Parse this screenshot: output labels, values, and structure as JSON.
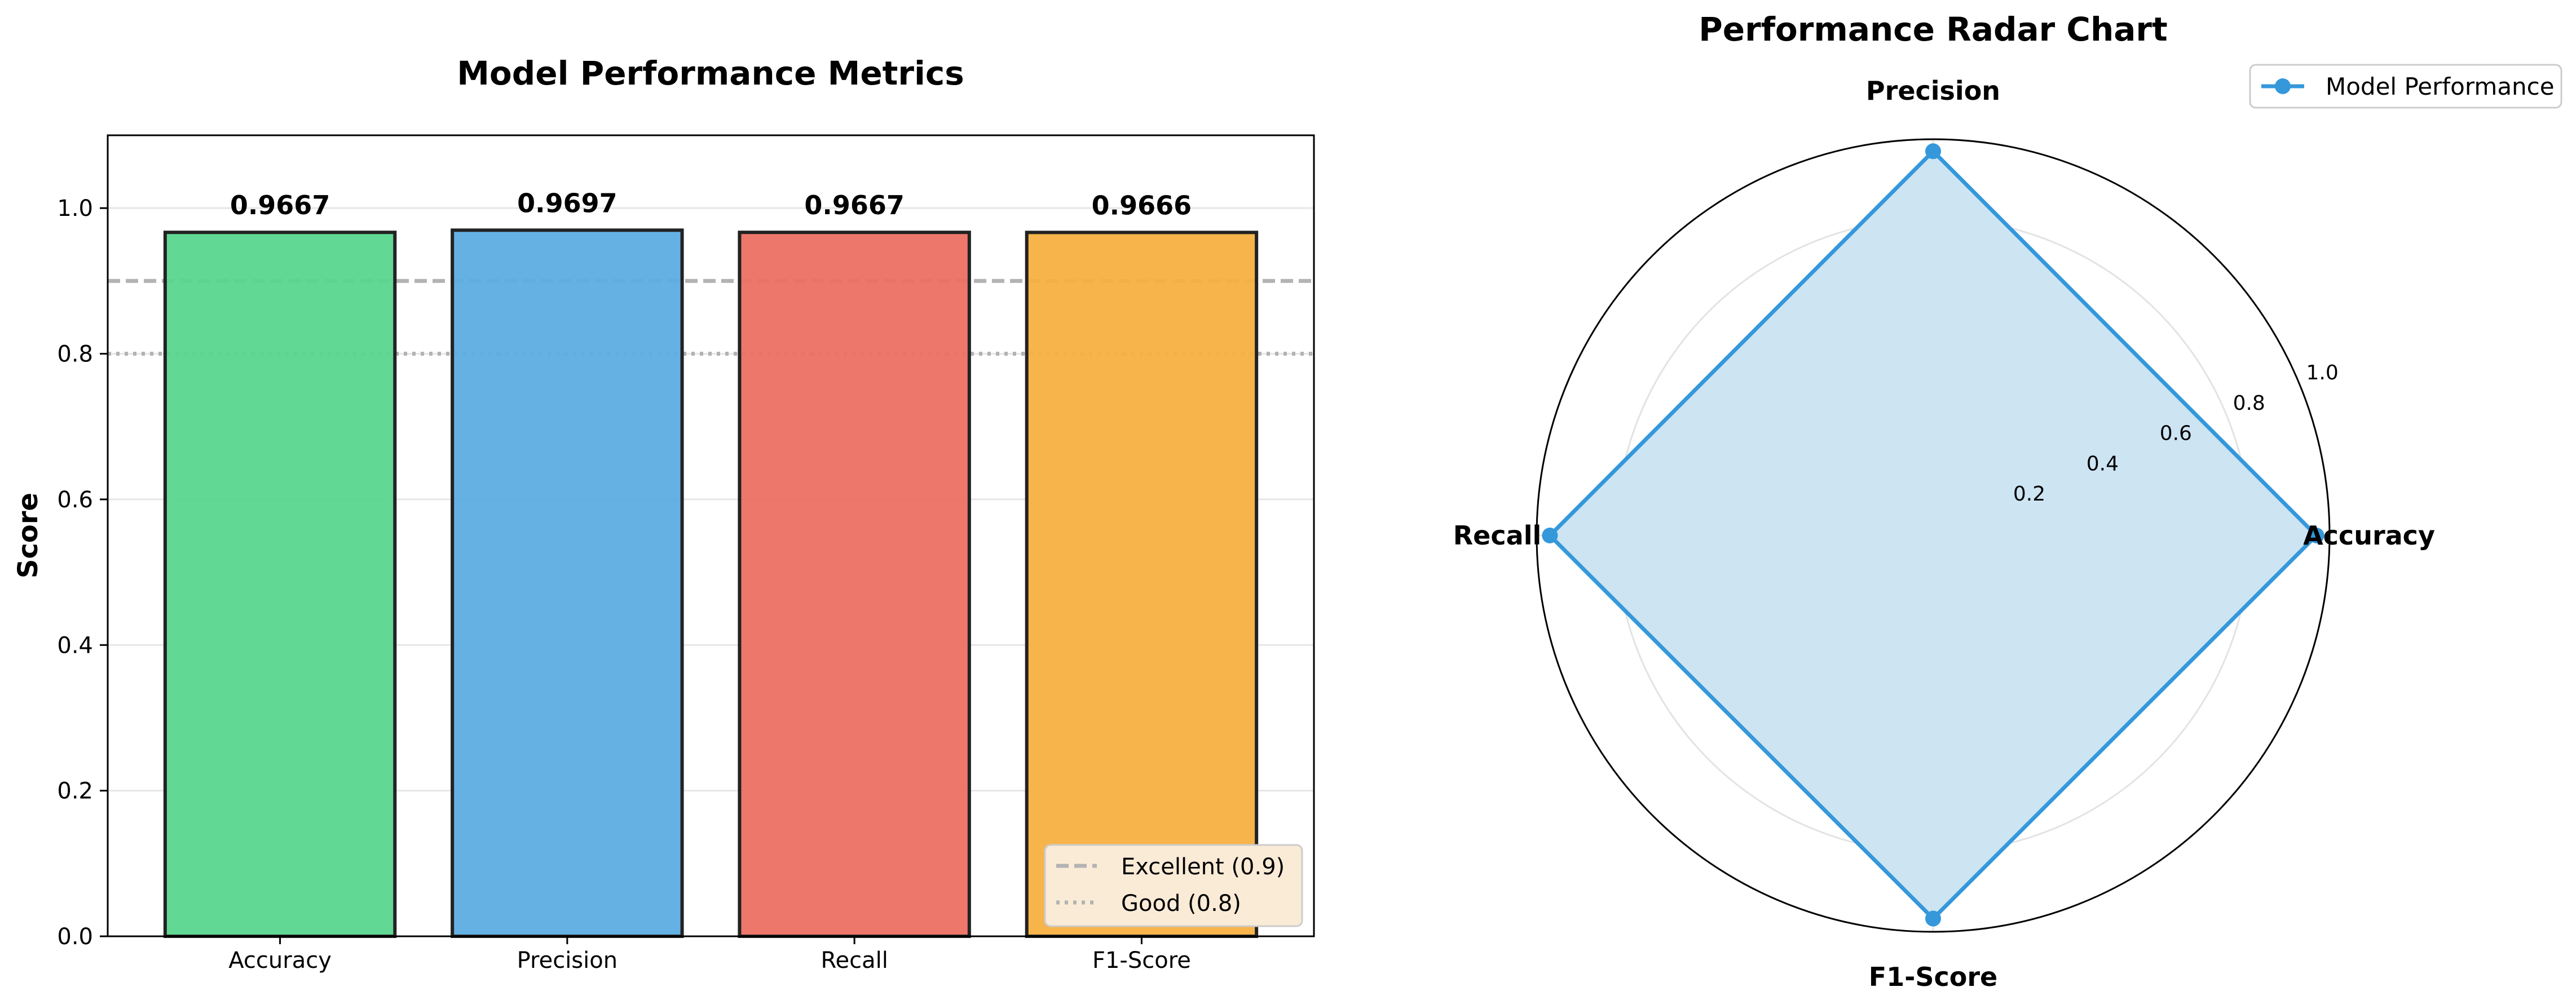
{
  "colors": {
    "accuracy": "#58d68d",
    "precision": "#5dade2",
    "recall": "#ec7063",
    "f1": "#f5b041",
    "radar_line": "#3498db",
    "radar_fill": "#cde4f3",
    "ref_excellent": "#b3b3b3",
    "ref_good": "#b3b3b3",
    "legend_bg": "#faebd7"
  },
  "chart_data": [
    {
      "type": "bar",
      "title": "Model Performance Metrics",
      "xlabel": "",
      "ylabel": "Score",
      "categories": [
        "Accuracy",
        "Precision",
        "Recall",
        "F1-Score"
      ],
      "values": [
        0.9667,
        0.9697,
        0.9667,
        0.9666
      ],
      "value_labels": [
        "0.9667",
        "0.9697",
        "0.9667",
        "0.9666"
      ],
      "ylim": [
        0,
        1.1
      ],
      "yticks": [
        0.0,
        0.2,
        0.4,
        0.6,
        0.8,
        1.0
      ],
      "ytick_labels": [
        "0.0",
        "0.2",
        "0.4",
        "0.6",
        "0.8",
        "1.0"
      ],
      "grid": true,
      "reference_lines": [
        {
          "label": "Excellent (0.9)",
          "value": 0.9,
          "style": "dashed"
        },
        {
          "label": "Good (0.8)",
          "value": 0.8,
          "style": "dotted"
        }
      ],
      "legend": {
        "position": "lower-right",
        "entries": [
          "Excellent (0.9)",
          "Good (0.8)"
        ]
      }
    },
    {
      "type": "radar",
      "title": "Performance Radar Chart",
      "axes": [
        "Accuracy",
        "Precision",
        "Recall",
        "F1-Score"
      ],
      "series": [
        {
          "name": "Model Performance",
          "values": [
            0.9667,
            0.9697,
            0.9667,
            0.9666
          ]
        }
      ],
      "rlim": [
        0,
        1.0
      ],
      "rticks": [
        0.2,
        0.4,
        0.6,
        0.8,
        1.0
      ],
      "rtick_labels": [
        "0.2",
        "0.4",
        "0.6",
        "0.8",
        "1.0"
      ],
      "grid": true,
      "legend": {
        "position": "top-right",
        "entries": [
          "Model Performance"
        ]
      }
    }
  ]
}
